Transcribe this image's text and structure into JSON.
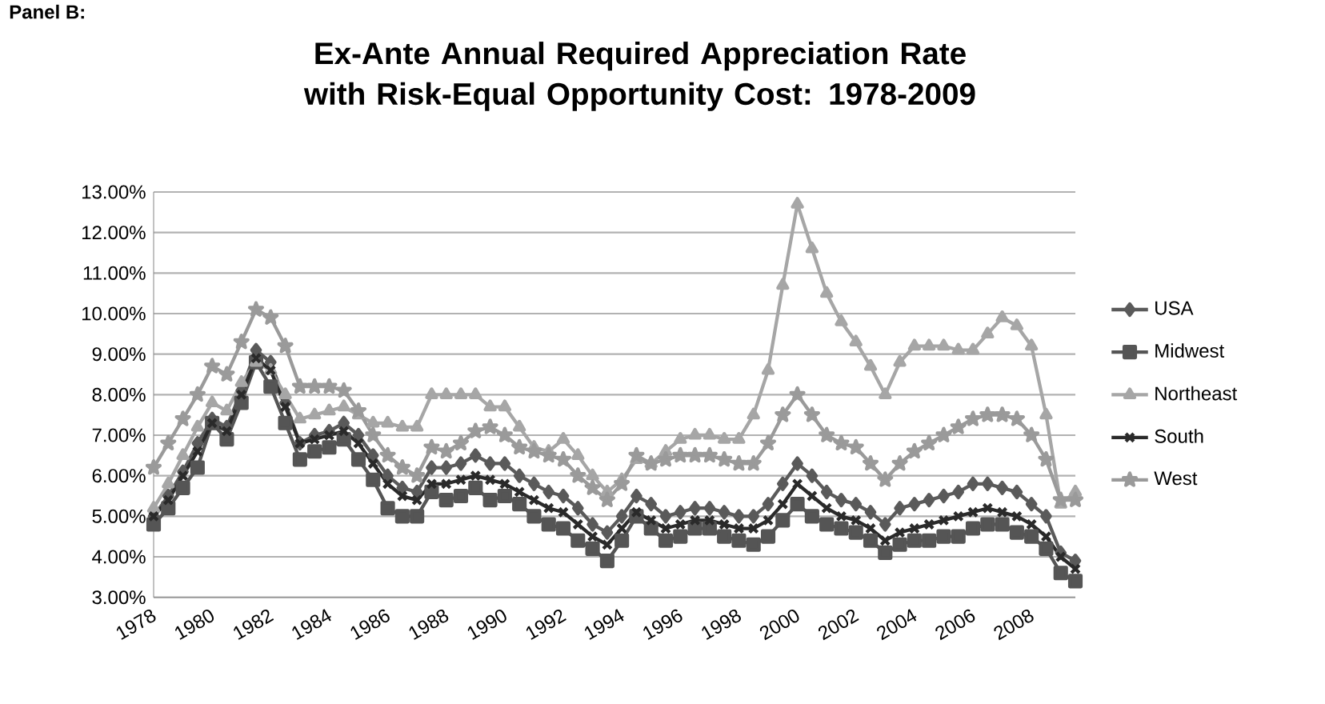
{
  "chart_data": {
    "type": "line",
    "title": "Ex-Ante Annual Required Appreciation Rate with Risk-Equal Opportunity Cost:  1978-2009",
    "annotations": [
      "Panel B:"
    ],
    "x": [
      1978,
      1978.5,
      1979,
      1979.5,
      1980,
      1980.5,
      1981,
      1981.5,
      1982,
      1982.5,
      1983,
      1983.5,
      1984,
      1984.5,
      1985,
      1985.5,
      1986,
      1986.5,
      1987,
      1987.5,
      1988,
      1988.5,
      1989,
      1989.5,
      1990,
      1990.5,
      1991,
      1991.5,
      1992,
      1992.5,
      1993,
      1993.5,
      1994,
      1994.5,
      1995,
      1995.5,
      1996,
      1996.5,
      1997,
      1997.5,
      1998,
      1998.5,
      1999,
      1999.5,
      2000,
      2000.5,
      2001,
      2001.5,
      2002,
      2002.5,
      2003,
      2003.5,
      2004,
      2004.5,
      2005,
      2005.5,
      2006,
      2006.5,
      2007,
      2007.5,
      2008,
      2008.5,
      2009,
      2009.5
    ],
    "xlim": [
      1978,
      2009.5
    ],
    "xticks": [
      1978,
      1980,
      1982,
      1984,
      1986,
      1988,
      1990,
      1992,
      1994,
      1996,
      1998,
      2000,
      2002,
      2004,
      2006,
      2008
    ],
    "ylim": [
      3,
      13
    ],
    "yticks": [
      {
        "value": 3,
        "label": "3.00%"
      },
      {
        "value": 4,
        "label": "4.00%"
      },
      {
        "value": 5,
        "label": "5.00%"
      },
      {
        "value": 6,
        "label": "6.00%"
      },
      {
        "value": 7,
        "label": "7.00%"
      },
      {
        "value": 8,
        "label": "8.00%"
      },
      {
        "value": 9,
        "label": "9.00%"
      },
      {
        "value": 10,
        "label": "10.00%"
      },
      {
        "value": 11,
        "label": "11.00%"
      },
      {
        "value": 12,
        "label": "12.00%"
      },
      {
        "value": 13,
        "label": "13.00%"
      }
    ],
    "grid": "y",
    "legend": "right",
    "line_style": "solid",
    "series": [
      {
        "name": "USA",
        "color": "#5a5a5a",
        "marker": "diamond",
        "values": [
          5.0,
          5.5,
          6.1,
          6.8,
          7.4,
          7.2,
          8.1,
          9.1,
          8.8,
          7.8,
          6.8,
          7.0,
          7.1,
          7.3,
          7.0,
          6.5,
          6.0,
          5.7,
          5.6,
          6.2,
          6.2,
          6.3,
          6.5,
          6.3,
          6.3,
          6.0,
          5.8,
          5.6,
          5.5,
          5.2,
          4.8,
          4.6,
          5.0,
          5.5,
          5.3,
          5.0,
          5.1,
          5.2,
          5.2,
          5.1,
          5.0,
          5.0,
          5.3,
          5.8,
          6.3,
          6.0,
          5.6,
          5.4,
          5.3,
          5.1,
          4.8,
          5.2,
          5.3,
          5.4,
          5.5,
          5.6,
          5.8,
          5.8,
          5.7,
          5.6,
          5.3,
          5.0,
          4.1,
          3.9
        ]
      },
      {
        "name": "Midwest",
        "color": "#555555",
        "marker": "square",
        "values": [
          4.8,
          5.2,
          5.7,
          6.2,
          7.3,
          6.9,
          7.8,
          8.8,
          8.2,
          7.3,
          6.4,
          6.6,
          6.7,
          6.9,
          6.4,
          5.9,
          5.2,
          5.0,
          5.0,
          5.6,
          5.4,
          5.5,
          5.7,
          5.4,
          5.5,
          5.3,
          5.0,
          4.8,
          4.7,
          4.4,
          4.2,
          3.9,
          4.4,
          5.0,
          4.7,
          4.4,
          4.5,
          4.7,
          4.7,
          4.5,
          4.4,
          4.3,
          4.5,
          4.9,
          5.3,
          5.0,
          4.8,
          4.7,
          4.6,
          4.4,
          4.1,
          4.3,
          4.4,
          4.4,
          4.5,
          4.5,
          4.7,
          4.8,
          4.8,
          4.6,
          4.5,
          4.2,
          3.6,
          3.4
        ]
      },
      {
        "name": "Northeast",
        "color": "#a6a6a6",
        "marker": "triangle",
        "values": [
          5.2,
          5.8,
          6.5,
          7.2,
          7.8,
          7.6,
          8.3,
          8.8,
          8.6,
          8.0,
          7.4,
          7.5,
          7.6,
          7.7,
          7.5,
          7.3,
          7.3,
          7.2,
          7.2,
          8.0,
          8.0,
          8.0,
          8.0,
          7.7,
          7.7,
          7.2,
          6.7,
          6.6,
          6.9,
          6.5,
          6.0,
          5.6,
          5.9,
          6.4,
          6.3,
          6.6,
          6.9,
          7.0,
          7.0,
          6.9,
          6.9,
          7.5,
          8.6,
          10.7,
          12.7,
          11.6,
          10.5,
          9.8,
          9.3,
          8.7,
          8.0,
          8.8,
          9.2,
          9.2,
          9.2,
          9.1,
          9.1,
          9.5,
          9.9,
          9.7,
          9.2,
          7.5,
          5.3,
          5.6
        ]
      },
      {
        "name": "South",
        "color": "#2a2a2a",
        "marker": "cross",
        "values": [
          5.0,
          5.4,
          6.0,
          6.6,
          7.3,
          7.1,
          8.0,
          8.9,
          8.6,
          7.7,
          6.8,
          6.9,
          7.0,
          7.1,
          6.8,
          6.3,
          5.8,
          5.5,
          5.4,
          5.8,
          5.8,
          5.9,
          6.0,
          5.9,
          5.8,
          5.6,
          5.4,
          5.2,
          5.1,
          4.8,
          4.5,
          4.3,
          4.7,
          5.1,
          4.9,
          4.7,
          4.8,
          4.9,
          4.9,
          4.8,
          4.7,
          4.7,
          4.9,
          5.3,
          5.8,
          5.5,
          5.2,
          5.0,
          4.9,
          4.7,
          4.4,
          4.6,
          4.7,
          4.8,
          4.9,
          5.0,
          5.1,
          5.2,
          5.1,
          5.0,
          4.8,
          4.5,
          4.0,
          3.7
        ]
      },
      {
        "name": "West",
        "color": "#9a9a9a",
        "marker": "star",
        "values": [
          6.2,
          6.8,
          7.4,
          8.0,
          8.7,
          8.5,
          9.3,
          10.1,
          9.9,
          9.2,
          8.2,
          8.2,
          8.2,
          8.1,
          7.6,
          7.0,
          6.5,
          6.2,
          6.0,
          6.7,
          6.6,
          6.8,
          7.1,
          7.2,
          7.0,
          6.7,
          6.6,
          6.5,
          6.4,
          6.0,
          5.7,
          5.4,
          5.8,
          6.5,
          6.3,
          6.4,
          6.5,
          6.5,
          6.5,
          6.4,
          6.3,
          6.3,
          6.8,
          7.5,
          8.0,
          7.5,
          7.0,
          6.8,
          6.7,
          6.3,
          5.9,
          6.3,
          6.6,
          6.8,
          7.0,
          7.2,
          7.4,
          7.5,
          7.5,
          7.4,
          7.0,
          6.4,
          5.4,
          5.4
        ]
      }
    ]
  }
}
